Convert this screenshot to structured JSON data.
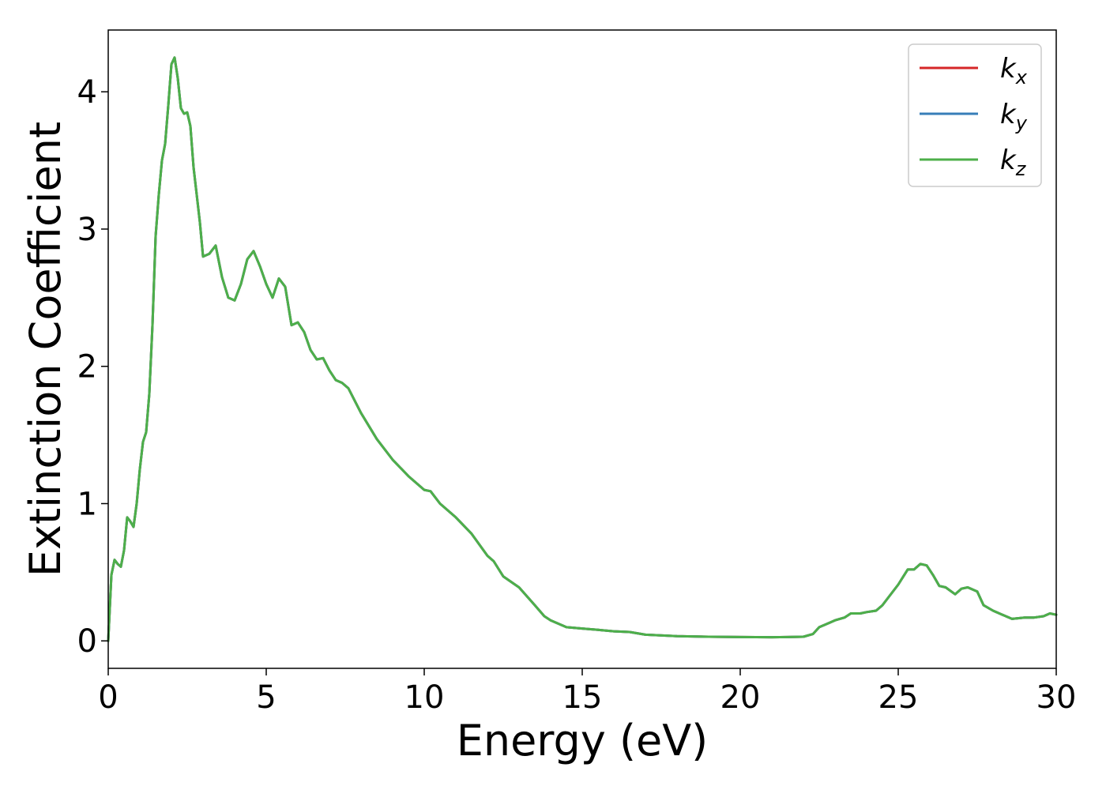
{
  "chart_data": {
    "type": "line",
    "title": "",
    "xlabel": "Energy (eV)",
    "ylabel": "Extinction Coefficient",
    "xlim": [
      0,
      30
    ],
    "ylim": [
      -0.2,
      4.45
    ],
    "x_ticks": [
      0,
      5,
      10,
      15,
      20,
      25,
      30
    ],
    "y_ticks": [
      0,
      1,
      2,
      3,
      4
    ],
    "grid": false,
    "legend_position": "top-right",
    "x": [
      0,
      0.1,
      0.2,
      0.3,
      0.4,
      0.5,
      0.6,
      0.7,
      0.8,
      0.9,
      1.0,
      1.1,
      1.2,
      1.3,
      1.4,
      1.5,
      1.6,
      1.7,
      1.8,
      1.9,
      2.0,
      2.1,
      2.2,
      2.3,
      2.4,
      2.5,
      2.6,
      2.7,
      2.8,
      2.9,
      3.0,
      3.2,
      3.4,
      3.6,
      3.8,
      4.0,
      4.2,
      4.4,
      4.6,
      4.8,
      5.0,
      5.2,
      5.4,
      5.6,
      5.8,
      6.0,
      6.2,
      6.4,
      6.6,
      6.8,
      7.0,
      7.2,
      7.4,
      7.6,
      7.8,
      8.0,
      8.5,
      9.0,
      9.5,
      10.0,
      10.2,
      10.5,
      11.0,
      11.5,
      12.0,
      12.2,
      12.5,
      13.0,
      13.5,
      13.8,
      14.0,
      14.5,
      15.0,
      15.5,
      16.0,
      16.5,
      17.0,
      18.0,
      19.0,
      20.0,
      21.0,
      21.5,
      22.0,
      22.3,
      22.5,
      22.8,
      23.0,
      23.3,
      23.5,
      23.8,
      24.0,
      24.3,
      24.5,
      24.7,
      25.0,
      25.3,
      25.5,
      25.7,
      25.9,
      26.1,
      26.3,
      26.5,
      26.8,
      27.0,
      27.2,
      27.5,
      27.7,
      28.0,
      28.3,
      28.6,
      29.0,
      29.3,
      29.6,
      29.8,
      30.0
    ],
    "y": [
      0.0,
      0.48,
      0.59,
      0.56,
      0.54,
      0.66,
      0.9,
      0.87,
      0.83,
      1.0,
      1.25,
      1.45,
      1.52,
      1.8,
      2.3,
      2.95,
      3.25,
      3.5,
      3.62,
      3.9,
      4.2,
      4.25,
      4.1,
      3.88,
      3.84,
      3.85,
      3.75,
      3.45,
      3.25,
      3.05,
      2.8,
      2.82,
      2.88,
      2.65,
      2.5,
      2.48,
      2.6,
      2.78,
      2.84,
      2.73,
      2.6,
      2.5,
      2.64,
      2.58,
      2.3,
      2.32,
      2.25,
      2.12,
      2.05,
      2.06,
      1.97,
      1.9,
      1.88,
      1.84,
      1.75,
      1.66,
      1.47,
      1.32,
      1.2,
      1.1,
      1.09,
      1.0,
      0.9,
      0.78,
      0.62,
      0.58,
      0.47,
      0.39,
      0.26,
      0.18,
      0.15,
      0.1,
      0.09,
      0.08,
      0.07,
      0.065,
      0.045,
      0.035,
      0.03,
      0.028,
      0.027,
      0.028,
      0.03,
      0.05,
      0.1,
      0.13,
      0.15,
      0.17,
      0.2,
      0.2,
      0.21,
      0.22,
      0.26,
      0.32,
      0.41,
      0.52,
      0.52,
      0.56,
      0.55,
      0.48,
      0.4,
      0.39,
      0.34,
      0.38,
      0.39,
      0.36,
      0.26,
      0.22,
      0.19,
      0.16,
      0.17,
      0.17,
      0.18,
      0.2,
      0.19
    ],
    "series": [
      {
        "name": "k",
        "subscript": "x",
        "color": "#d62728"
      },
      {
        "name": "k",
        "subscript": "y",
        "color": "#377eb8"
      },
      {
        "name": "k",
        "subscript": "z",
        "color": "#4daf4a"
      }
    ]
  }
}
